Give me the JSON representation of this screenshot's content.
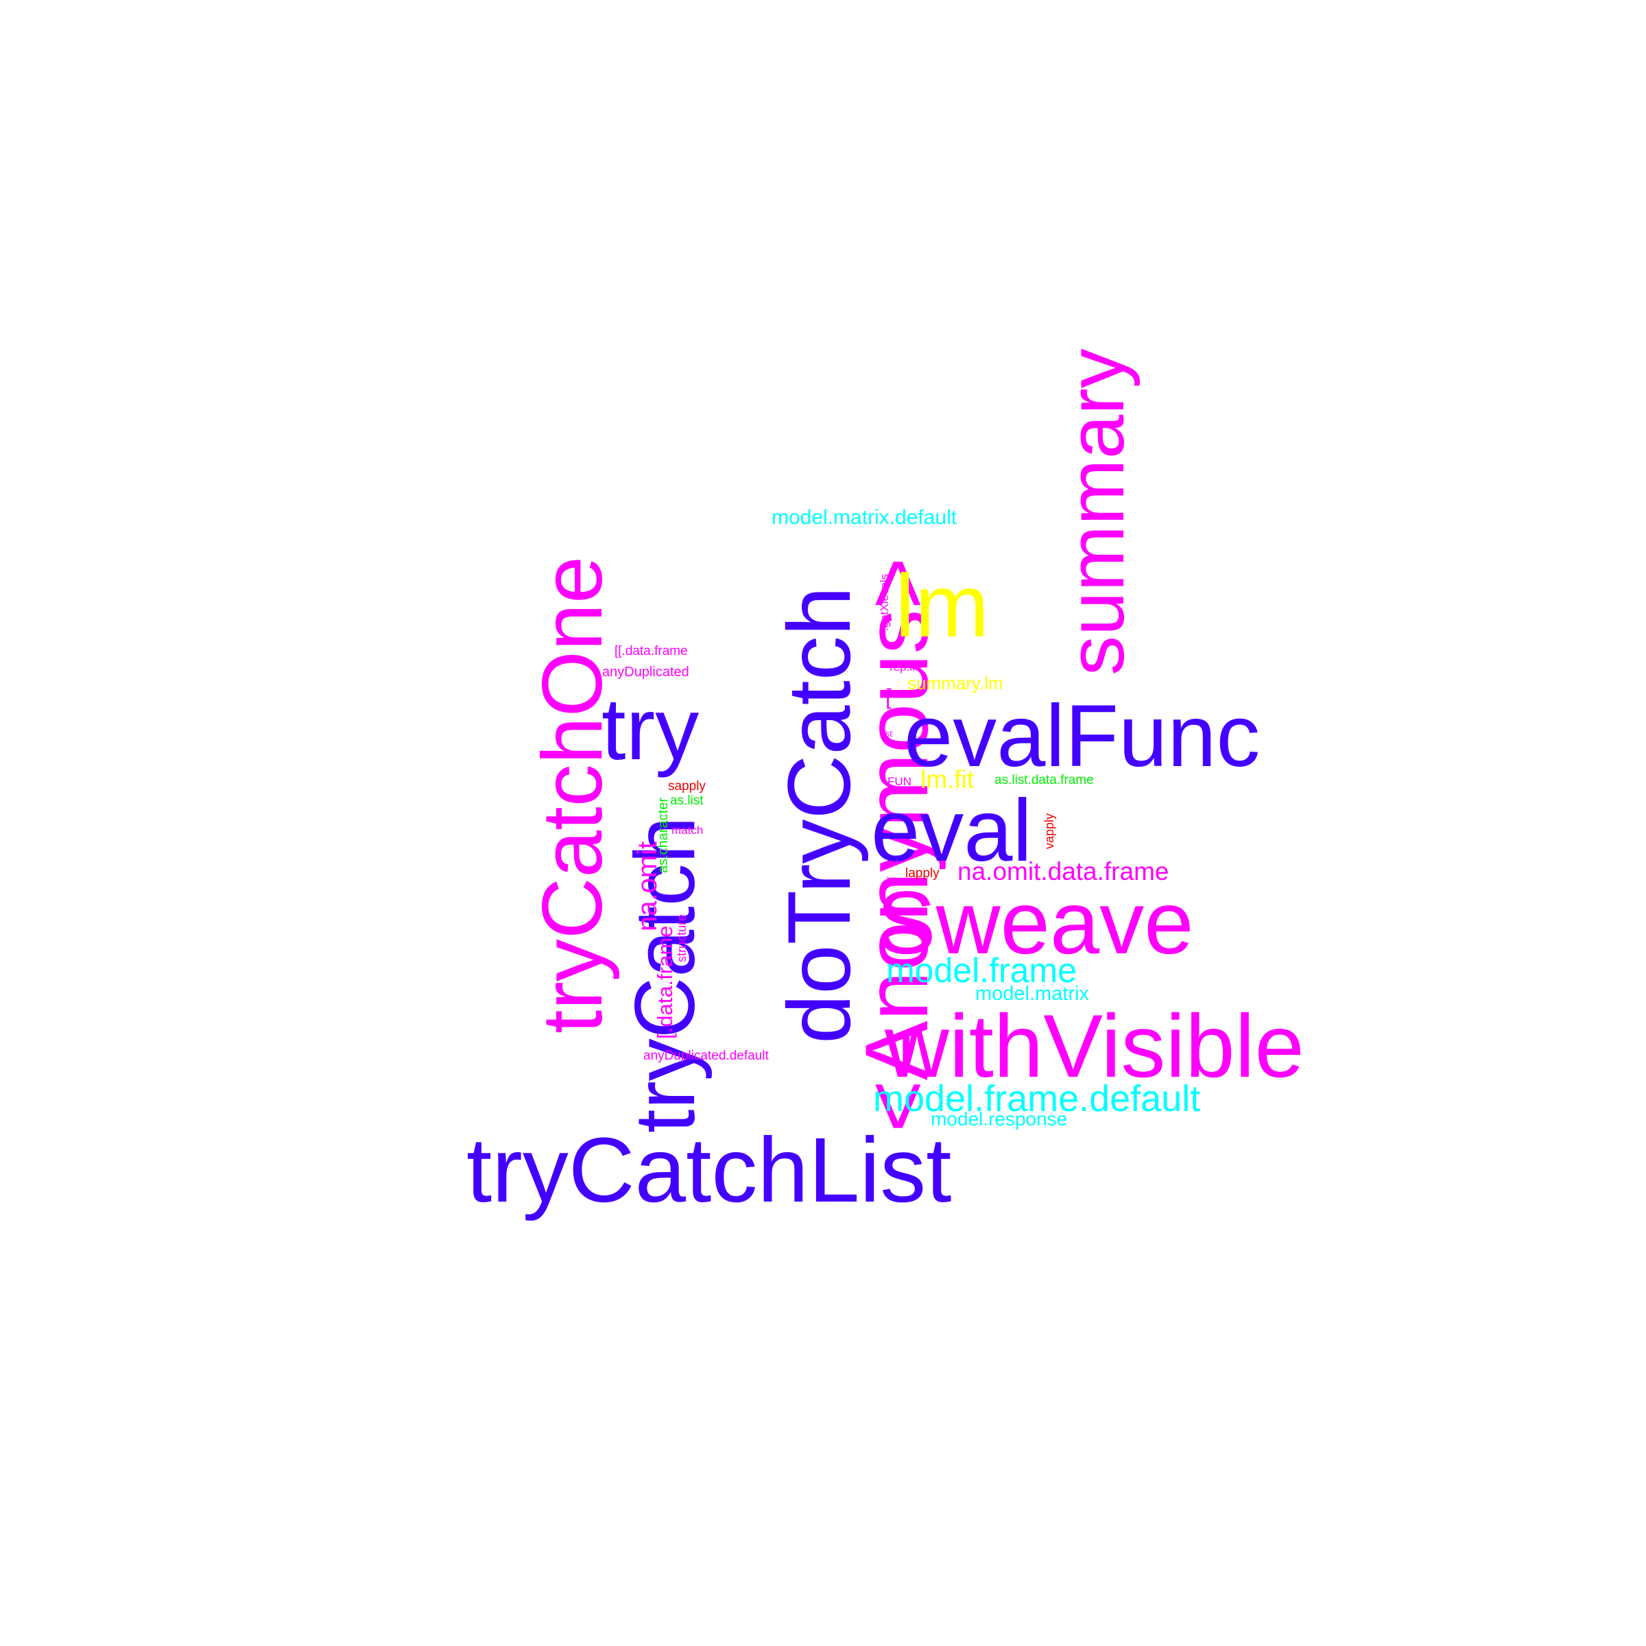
{
  "colors": {
    "blue": "#4400ff",
    "magenta": "#ff00ff",
    "cyan": "#00ffff",
    "yellow": "#ffff00",
    "green": "#00ee00",
    "red": "#ee0000"
  },
  "words": {
    "trycatchlist": "tryCatchList",
    "trycatchone": "tryCatchOne",
    "trycatch": "tryCatch",
    "try": "try",
    "dotrycatch": "doTryCatch",
    "anonymous": "<Anonymous>",
    "summary": "summary",
    "lm": "lm",
    "evalfunc": "evalFunc",
    "eval": "eval",
    "sweave": "Sweave",
    "withvisible": "withVisible",
    "model_matrix_default": "model.matrix.default",
    "model_frame": "model.frame",
    "model_matrix": "model.matrix",
    "model_frame_default": "model.frame.default",
    "model_response": "model.response",
    "na_omit_data_frame": "na.omit.data.frame",
    "na_omit": "na.omit",
    "bracket_data_frame": "[.data.frame",
    "dbl_bracket_data_frame": "[[.data.frame",
    "anyduplicated": "anyDuplicated",
    "anyduplicated_default": "anyDuplicated.default",
    "structure": "structure",
    "as_character": "as.character",
    "as_list": "as.list",
    "sapply": "sapply",
    "match": "match",
    "getxlevels": ".getXlevels",
    "rep_int": "rep.int",
    "summary_lm": "summary.lm",
    "bracket": "[",
    "list": "list",
    "fun": "FUN",
    "lm_fit": "lm.fit",
    "as_list_data_frame": "as.list.data.frame",
    "vapply": "vapply",
    "lapply": "lapply",
    "dbl_bracket": "[["
  }
}
